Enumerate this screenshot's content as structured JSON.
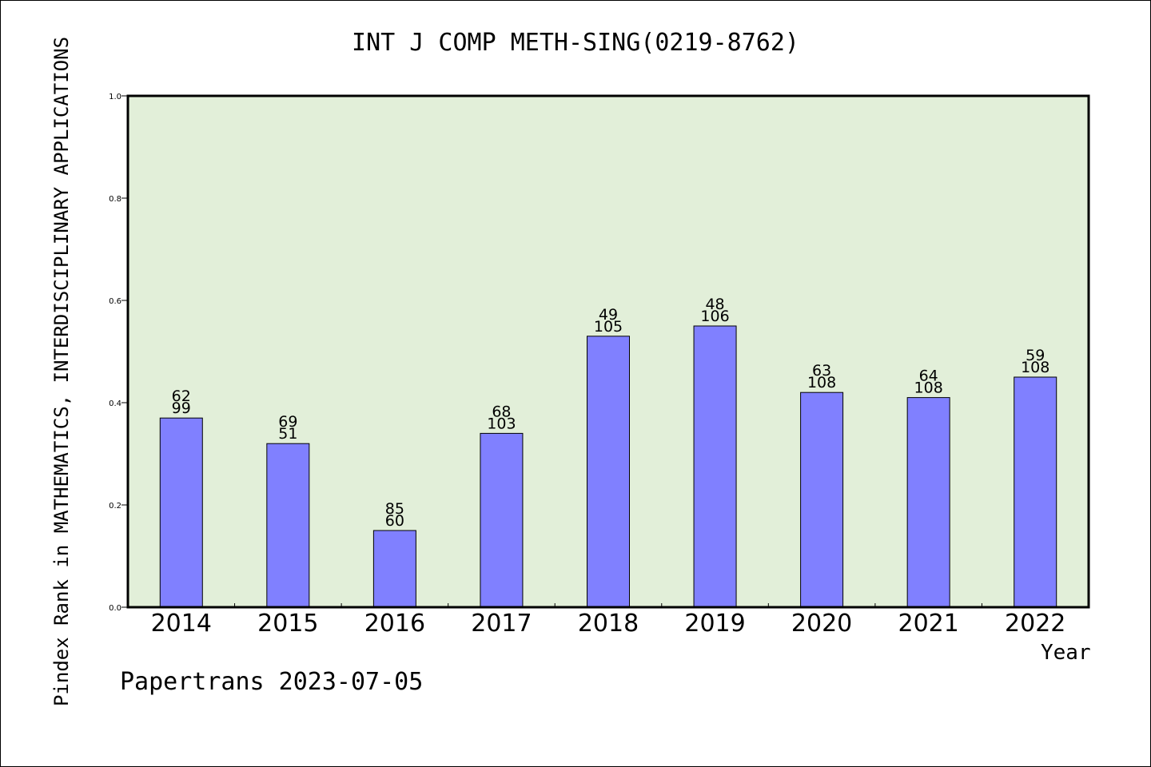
{
  "chart_data": {
    "type": "bar",
    "title": "INT J COMP METH-SING(0219-8762)",
    "xlabel": "Year",
    "ylabel": "Pindex Rank in MATHEMATICS, INTERDISCIPLINARY APPLICATIONS",
    "categories": [
      "2014",
      "2015",
      "2016",
      "2017",
      "2018",
      "2019",
      "2020",
      "2021",
      "2022"
    ],
    "values": [
      0.37,
      0.32,
      0.15,
      0.34,
      0.53,
      0.55,
      0.42,
      0.41,
      0.45
    ],
    "label_top": [
      "62",
      "69",
      "85",
      "68",
      "49",
      "48",
      "63",
      "64",
      "59"
    ],
    "label_bottom": [
      "99",
      "51",
      "60",
      "103",
      "105",
      "106",
      "108",
      "108",
      "108"
    ],
    "ylim": [
      0,
      1.0
    ],
    "yticks": [
      "0.0",
      "0.2",
      "0.4",
      "0.6",
      "0.8",
      "1.0"
    ],
    "grid": false,
    "legend": "none",
    "colors": {
      "bar": "#8080ff",
      "plot_background": "#e2efd9",
      "axis": "#000000"
    }
  },
  "footer": {
    "watermark": "Papertrans 2023-07-05"
  }
}
